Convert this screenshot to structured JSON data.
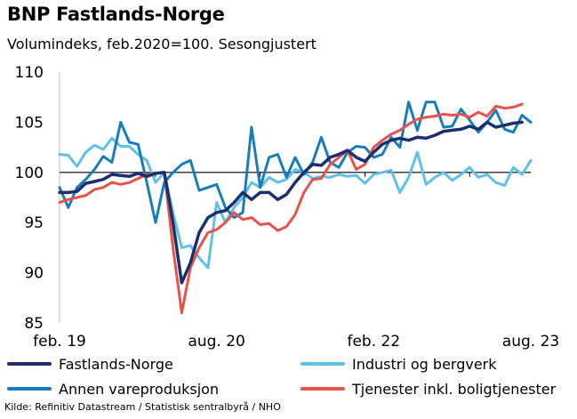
{
  "title": "BNP Fastlands-Norge",
  "subtitle": "Volumindeks, feb.2020=100. Sesongjustert",
  "source": "Kilde: Refinitiv Datastream / Statistisk sentralbyrå / NHO",
  "chart_data": {
    "type": "line",
    "ylim": [
      85,
      110
    ],
    "yticks": [
      85,
      90,
      95,
      100,
      105,
      110
    ],
    "xlim": [
      "2019-02",
      "2023-08"
    ],
    "xticks": [
      "feb. 19",
      "aug. 20",
      "feb. 22",
      "aug. 23"
    ],
    "xtick_dates": [
      "2019-02",
      "2020-08",
      "2022-02",
      "2023-08"
    ],
    "reference_line": 100,
    "series": [
      {
        "name": "Fastlands-Norge",
        "color": "#1b2f6e",
        "values": [
          [
            "2019-02",
            98.0
          ],
          [
            "2019-03",
            98.0
          ],
          [
            "2019-04",
            98.1
          ],
          [
            "2019-05",
            98.9
          ],
          [
            "2019-06",
            99.1
          ],
          [
            "2019-07",
            99.3
          ],
          [
            "2019-08",
            99.8
          ],
          [
            "2019-09",
            99.7
          ],
          [
            "2019-10",
            99.6
          ],
          [
            "2019-11",
            99.9
          ],
          [
            "2019-12",
            99.6
          ],
          [
            "2020-01",
            99.9
          ],
          [
            "2020-02",
            100.0
          ],
          [
            "2020-03",
            95.0
          ],
          [
            "2020-04",
            89.0
          ],
          [
            "2020-05",
            91.0
          ],
          [
            "2020-06",
            94.0
          ],
          [
            "2020-07",
            95.5
          ],
          [
            "2020-08",
            96.0
          ],
          [
            "2020-09",
            96.2
          ],
          [
            "2020-10",
            97.0
          ],
          [
            "2020-11",
            98.0
          ],
          [
            "2020-12",
            97.3
          ],
          [
            "2021-01",
            98.0
          ],
          [
            "2021-02",
            98.0
          ],
          [
            "2021-03",
            97.3
          ],
          [
            "2021-04",
            97.8
          ],
          [
            "2021-05",
            99.0
          ],
          [
            "2021-06",
            100.0
          ],
          [
            "2021-07",
            100.8
          ],
          [
            "2021-08",
            100.7
          ],
          [
            "2021-09",
            101.5
          ],
          [
            "2021-10",
            101.8
          ],
          [
            "2021-11",
            102.2
          ],
          [
            "2021-12",
            101.5
          ],
          [
            "2022-01",
            101.1
          ],
          [
            "2022-02",
            102.0
          ],
          [
            "2022-03",
            102.8
          ],
          [
            "2022-04",
            103.2
          ],
          [
            "2022-05",
            103.4
          ],
          [
            "2022-06",
            103.2
          ],
          [
            "2022-07",
            103.5
          ],
          [
            "2022-08",
            103.4
          ],
          [
            "2022-09",
            103.7
          ],
          [
            "2022-10",
            104.1
          ],
          [
            "2022-11",
            104.2
          ],
          [
            "2022-12",
            104.3
          ],
          [
            "2023-01",
            104.6
          ],
          [
            "2023-02",
            104.3
          ],
          [
            "2023-03",
            105.0
          ],
          [
            "2023-04",
            104.5
          ],
          [
            "2023-05",
            104.7
          ],
          [
            "2023-06",
            104.9
          ],
          [
            "2023-07",
            105.0
          ]
        ]
      },
      {
        "name": "Industri og bergverk",
        "color": "#5fc1e8",
        "values": [
          [
            "2019-02",
            101.8
          ],
          [
            "2019-03",
            101.7
          ],
          [
            "2019-04",
            100.6
          ],
          [
            "2019-05",
            102.0
          ],
          [
            "2019-06",
            102.7
          ],
          [
            "2019-07",
            102.3
          ],
          [
            "2019-08",
            103.4
          ],
          [
            "2019-09",
            102.6
          ],
          [
            "2019-10",
            102.6
          ],
          [
            "2019-11",
            101.8
          ],
          [
            "2019-12",
            101.2
          ],
          [
            "2020-01",
            99.0
          ],
          [
            "2020-02",
            100.0
          ],
          [
            "2020-03",
            96.0
          ],
          [
            "2020-04",
            92.5
          ],
          [
            "2020-05",
            92.7
          ],
          [
            "2020-06",
            91.5
          ],
          [
            "2020-07",
            90.5
          ],
          [
            "2020-08",
            97.0
          ],
          [
            "2020-09",
            95.0
          ],
          [
            "2020-10",
            96.5
          ],
          [
            "2020-11",
            97.5
          ],
          [
            "2020-12",
            99.0
          ],
          [
            "2021-01",
            98.5
          ],
          [
            "2021-02",
            99.5
          ],
          [
            "2021-03",
            99.0
          ],
          [
            "2021-04",
            99.3
          ],
          [
            "2021-05",
            100.3
          ],
          [
            "2021-06",
            100.0
          ],
          [
            "2021-07",
            99.4
          ],
          [
            "2021-08",
            99.6
          ],
          [
            "2021-09",
            99.5
          ],
          [
            "2021-10",
            99.8
          ],
          [
            "2021-11",
            99.6
          ],
          [
            "2021-12",
            99.7
          ],
          [
            "2022-01",
            98.9
          ],
          [
            "2022-02",
            99.8
          ],
          [
            "2022-03",
            100.0
          ],
          [
            "2022-04",
            100.2
          ],
          [
            "2022-05",
            98.0
          ],
          [
            "2022-06",
            99.5
          ],
          [
            "2022-07",
            102.0
          ],
          [
            "2022-08",
            98.8
          ],
          [
            "2022-09",
            99.5
          ],
          [
            "2022-10",
            100.0
          ],
          [
            "2022-11",
            99.2
          ],
          [
            "2022-12",
            99.8
          ],
          [
            "2023-01",
            100.5
          ],
          [
            "2023-02",
            99.5
          ],
          [
            "2023-03",
            99.8
          ],
          [
            "2023-04",
            99.0
          ],
          [
            "2023-05",
            98.7
          ],
          [
            "2023-06",
            100.5
          ],
          [
            "2023-07",
            99.8
          ],
          [
            "2023-08",
            101.2
          ]
        ]
      },
      {
        "name": "Annen vareproduksjon",
        "color": "#1a7dbb",
        "values": [
          [
            "2019-02",
            98.5
          ],
          [
            "2019-03",
            96.5
          ],
          [
            "2019-04",
            98.5
          ],
          [
            "2019-05",
            99.3
          ],
          [
            "2019-06",
            100.3
          ],
          [
            "2019-07",
            101.6
          ],
          [
            "2019-08",
            101.0
          ],
          [
            "2019-09",
            105.0
          ],
          [
            "2019-10",
            103.0
          ],
          [
            "2019-11",
            102.8
          ],
          [
            "2019-12",
            99.0
          ],
          [
            "2020-01",
            95.0
          ],
          [
            "2020-02",
            99.0
          ],
          [
            "2020-03",
            100.0
          ],
          [
            "2020-04",
            100.8
          ],
          [
            "2020-05",
            101.2
          ],
          [
            "2020-06",
            98.2
          ],
          [
            "2020-07",
            98.5
          ],
          [
            "2020-08",
            98.8
          ],
          [
            "2020-09",
            96.5
          ],
          [
            "2020-10",
            95.5
          ],
          [
            "2020-11",
            96.0
          ],
          [
            "2020-12",
            104.5
          ],
          [
            "2021-01",
            98.5
          ],
          [
            "2021-02",
            101.5
          ],
          [
            "2021-03",
            101.8
          ],
          [
            "2021-04",
            99.5
          ],
          [
            "2021-05",
            101.5
          ],
          [
            "2021-06",
            99.8
          ],
          [
            "2021-07",
            101.0
          ],
          [
            "2021-08",
            103.5
          ],
          [
            "2021-09",
            101.0
          ],
          [
            "2021-10",
            100.5
          ],
          [
            "2021-11",
            102.0
          ],
          [
            "2021-12",
            102.6
          ],
          [
            "2022-01",
            102.5
          ],
          [
            "2022-02",
            101.5
          ],
          [
            "2022-03",
            101.8
          ],
          [
            "2022-04",
            103.5
          ],
          [
            "2022-05",
            102.5
          ],
          [
            "2022-06",
            107.0
          ],
          [
            "2022-07",
            104.2
          ],
          [
            "2022-08",
            107.0
          ],
          [
            "2022-09",
            107.0
          ],
          [
            "2022-10",
            104.5
          ],
          [
            "2022-11",
            104.6
          ],
          [
            "2022-12",
            106.3
          ],
          [
            "2023-01",
            105.2
          ],
          [
            "2023-02",
            104.0
          ],
          [
            "2023-03",
            105.0
          ],
          [
            "2023-04",
            106.2
          ],
          [
            "2023-05",
            104.3
          ],
          [
            "2023-06",
            104.0
          ],
          [
            "2023-07",
            105.7
          ],
          [
            "2023-08",
            105.0
          ]
        ]
      },
      {
        "name": "Tjenester inkl. boligtjenester",
        "color": "#e5534b",
        "values": [
          [
            "2019-02",
            97.0
          ],
          [
            "2019-03",
            97.3
          ],
          [
            "2019-04",
            97.5
          ],
          [
            "2019-05",
            97.7
          ],
          [
            "2019-06",
            98.3
          ],
          [
            "2019-07",
            98.5
          ],
          [
            "2019-08",
            99.0
          ],
          [
            "2019-09",
            98.8
          ],
          [
            "2019-10",
            99.0
          ],
          [
            "2019-11",
            99.4
          ],
          [
            "2019-12",
            99.8
          ],
          [
            "2020-01",
            99.9
          ],
          [
            "2020-02",
            100.0
          ],
          [
            "2020-03",
            92.5
          ],
          [
            "2020-04",
            86.0
          ],
          [
            "2020-05",
            90.5
          ],
          [
            "2020-06",
            92.5
          ],
          [
            "2020-07",
            94.0
          ],
          [
            "2020-08",
            94.3
          ],
          [
            "2020-09",
            95.0
          ],
          [
            "2020-10",
            96.0
          ],
          [
            "2020-11",
            95.3
          ],
          [
            "2020-12",
            95.5
          ],
          [
            "2021-01",
            94.8
          ],
          [
            "2021-02",
            94.9
          ],
          [
            "2021-03",
            94.2
          ],
          [
            "2021-04",
            94.6
          ],
          [
            "2021-05",
            95.8
          ],
          [
            "2021-06",
            98.0
          ],
          [
            "2021-07",
            99.3
          ],
          [
            "2021-08",
            99.4
          ],
          [
            "2021-09",
            100.8
          ],
          [
            "2021-10",
            101.5
          ],
          [
            "2021-11",
            102.2
          ],
          [
            "2021-12",
            100.3
          ],
          [
            "2022-01",
            100.8
          ],
          [
            "2022-02",
            102.5
          ],
          [
            "2022-03",
            103.2
          ],
          [
            "2022-04",
            103.8
          ],
          [
            "2022-05",
            104.2
          ],
          [
            "2022-06",
            104.8
          ],
          [
            "2022-07",
            105.3
          ],
          [
            "2022-08",
            105.5
          ],
          [
            "2022-09",
            105.6
          ],
          [
            "2022-10",
            105.8
          ],
          [
            "2022-11",
            105.7
          ],
          [
            "2022-12",
            105.8
          ],
          [
            "2023-01",
            105.5
          ],
          [
            "2023-02",
            106.0
          ],
          [
            "2023-03",
            105.6
          ],
          [
            "2023-04",
            106.6
          ],
          [
            "2023-05",
            106.4
          ],
          [
            "2023-06",
            106.5
          ],
          [
            "2023-07",
            106.8
          ]
        ]
      }
    ]
  }
}
